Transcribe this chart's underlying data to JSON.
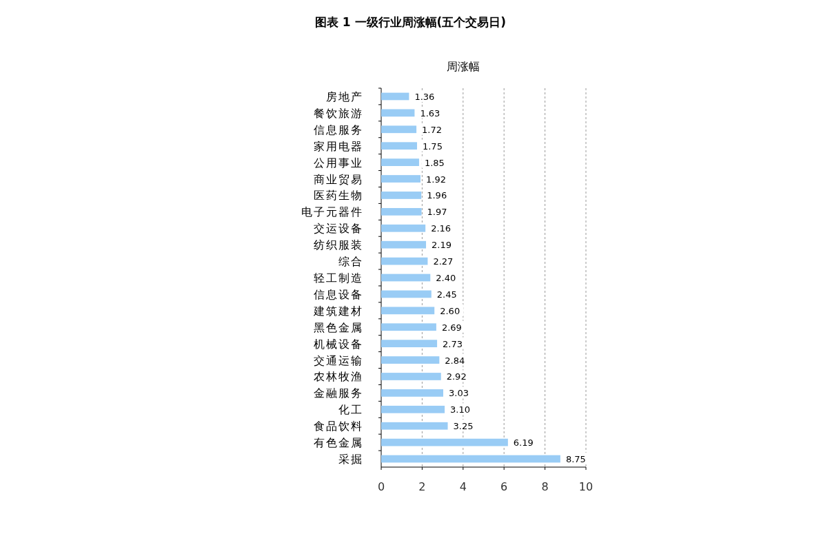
{
  "chart_data": {
    "type": "bar",
    "orientation": "horizontal",
    "title": "图表 1 一级行业周涨幅(五个交易日)",
    "subtitle": "周涨幅",
    "categories": [
      "房地产",
      "餐饮旅游",
      "信息服务",
      "家用电器",
      "公用事业",
      "商业贸易",
      "医药生物",
      "电子元器件",
      "交运设备",
      "纺织服装",
      "综合",
      "轻工制造",
      "信息设备",
      "建筑建材",
      "黑色金属",
      "机械设备",
      "交通运输",
      "农林牧渔",
      "金融服务",
      "化工",
      "食品饮料",
      "有色金属",
      "采掘"
    ],
    "values": [
      1.36,
      1.63,
      1.72,
      1.75,
      1.85,
      1.92,
      1.96,
      1.97,
      2.16,
      2.19,
      2.27,
      2.4,
      2.45,
      2.6,
      2.69,
      2.73,
      2.84,
      2.92,
      3.03,
      3.1,
      3.25,
      6.19,
      8.75
    ],
    "value_labels": [
      "1.36",
      "1.63",
      "1.72",
      "1.75",
      "1.85",
      "1.92",
      "1.96",
      "1.97",
      "2.16",
      "2.19",
      "2.27",
      "2.40",
      "2.45",
      "2.60",
      "2.69",
      "2.73",
      "2.84",
      "2.92",
      "3.03",
      "3.10",
      "3.25",
      "6.19",
      "8.75"
    ],
    "color": "#99ccf5",
    "xlim": [
      0,
      10
    ],
    "xticks": [
      0,
      2,
      4,
      6,
      8,
      10
    ],
    "grid": "x"
  }
}
